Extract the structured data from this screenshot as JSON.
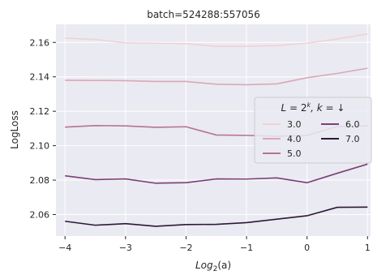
{
  "chart_data": {
    "type": "line",
    "title": "batch=524288:557056",
    "xlabel": "Log",
    "xlabel_sub": "2",
    "xlabel_tail": "(a)",
    "ylabel": "LogLoss",
    "xlim": [
      -4.15,
      1.05
    ],
    "ylim": [
      2.0475,
      2.1705
    ],
    "xticks": [
      -4,
      -3,
      -2,
      -1,
      0,
      1
    ],
    "xtick_labels": [
      "−4",
      "−3",
      "−2",
      "−1",
      "0",
      "1"
    ],
    "yticks": [
      2.06,
      2.08,
      2.1,
      2.12,
      2.14,
      2.16
    ],
    "ytick_labels": [
      "2.06",
      "2.08",
      "2.10",
      "2.12",
      "2.14",
      "2.16"
    ],
    "grid": true,
    "background": "#eaeaf2",
    "x": [
      -4,
      -3.5,
      -3,
      -2.5,
      -2,
      -1.5,
      -1,
      -0.5,
      0,
      0.5,
      1
    ],
    "series": [
      {
        "name": "3.0",
        "color": "#f0d2d4",
        "values": [
          2.1625,
          2.1617,
          2.1597,
          2.1595,
          2.1593,
          2.1577,
          2.1578,
          2.1581,
          2.1596,
          2.162,
          2.165
        ]
      },
      {
        "name": "4.0",
        "color": "#dca7b5",
        "values": [
          2.138,
          2.1379,
          2.1378,
          2.1373,
          2.1373,
          2.1357,
          2.1354,
          2.1359,
          2.1395,
          2.142,
          2.145
        ]
      },
      {
        "name": "5.0",
        "color": "#b57396",
        "values": [
          2.1108,
          2.1117,
          2.1115,
          2.1107,
          2.111,
          2.1062,
          2.106,
          2.1055,
          2.106,
          2.1112,
          2.1115
        ]
      },
      {
        "name": "6.0",
        "color": "#7c3f77",
        "values": [
          2.0825,
          2.0803,
          2.0807,
          2.0782,
          2.0785,
          2.0807,
          2.0806,
          2.0813,
          2.0785,
          2.084,
          2.0893
        ]
      },
      {
        "name": "7.0",
        "color": "#2c1933",
        "values": [
          2.0561,
          2.0538,
          2.0547,
          2.0532,
          2.0542,
          2.0543,
          2.0553,
          2.0573,
          2.0593,
          2.0642,
          2.0643
        ]
      }
    ],
    "legend": {
      "title": "L = 2^k, k = ↓",
      "title_prefix": "L",
      "title_eq": " = 2",
      "title_sup": "k",
      "title_tail": ", k = ↓",
      "position": "center-right",
      "columns": 2
    }
  }
}
